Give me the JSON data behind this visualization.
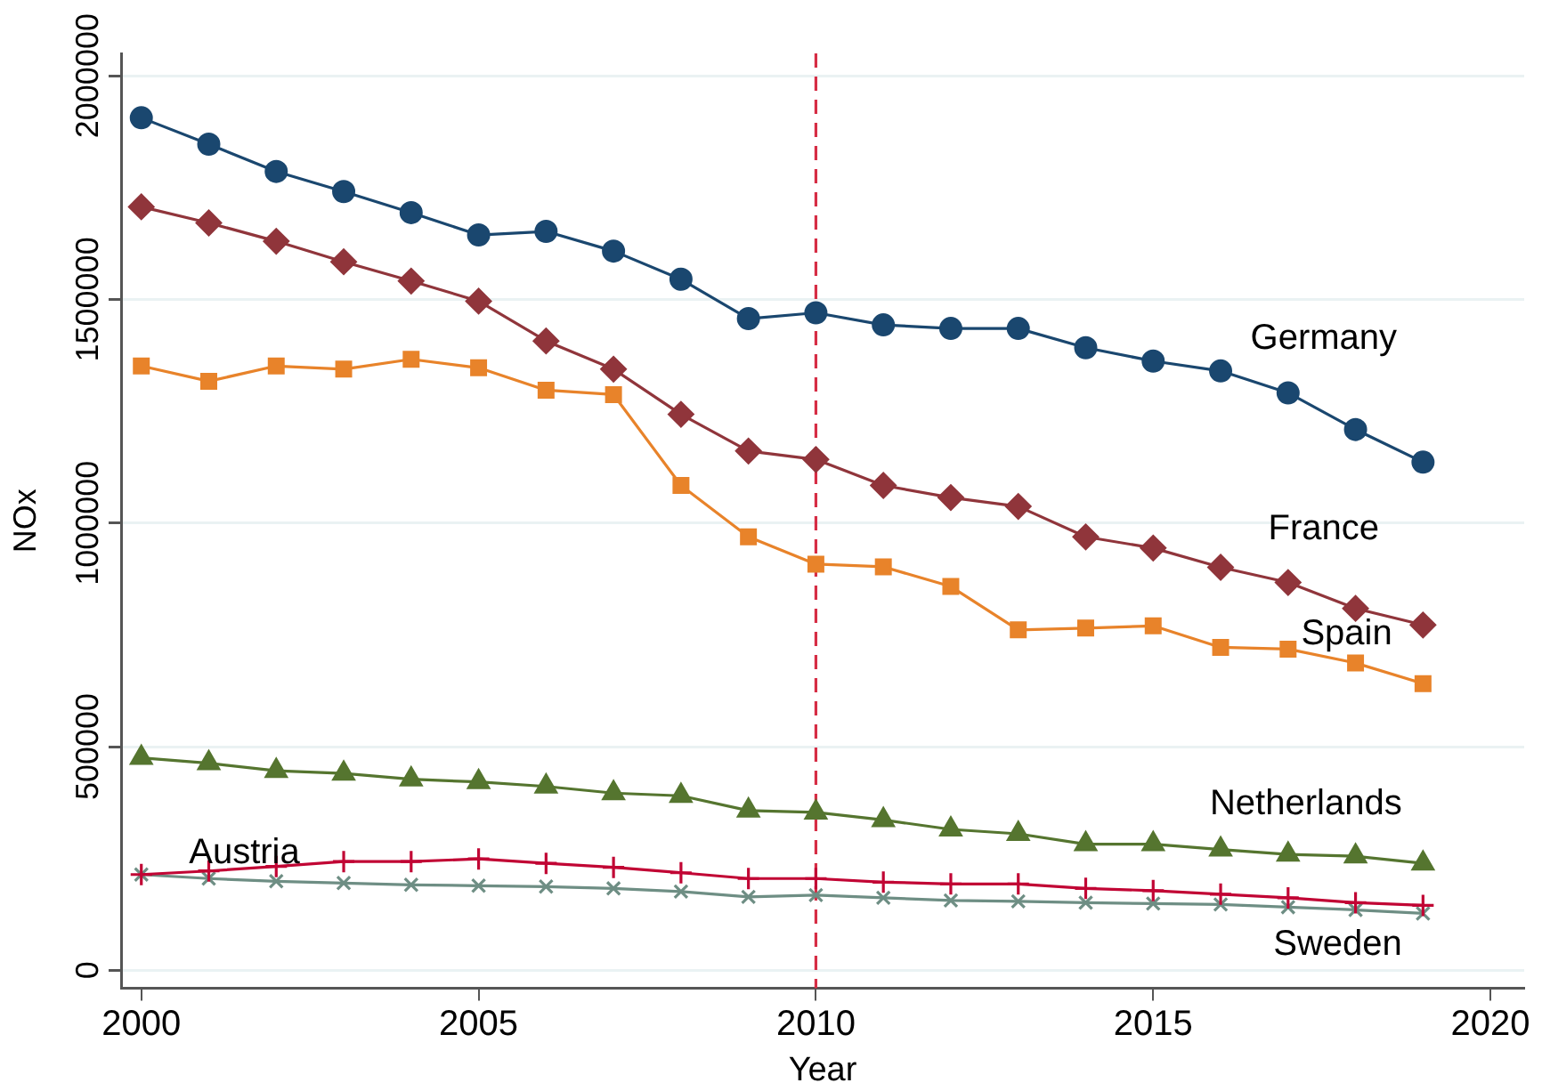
{
  "chart_data": {
    "type": "line",
    "xlabel": "Year",
    "ylabel": "NOx",
    "x": [
      2000,
      2001,
      2002,
      2003,
      2004,
      2005,
      2006,
      2007,
      2008,
      2009,
      2010,
      2011,
      2012,
      2013,
      2014,
      2015,
      2016,
      2017,
      2018,
      2019
    ],
    "series": [
      {
        "name": "Germany",
        "color": "#1a476f",
        "marker": "circle",
        "values": [
          1906000,
          1847000,
          1786000,
          1741000,
          1694000,
          1644000,
          1652000,
          1608000,
          1545000,
          1457000,
          1470000,
          1443000,
          1435000,
          1435000,
          1392000,
          1362000,
          1340000,
          1291000,
          1209000,
          1136000
        ]
      },
      {
        "name": "France",
        "color": "#90353b",
        "marker": "diamond",
        "values": [
          1707000,
          1671000,
          1630000,
          1584000,
          1541000,
          1496000,
          1407000,
          1344000,
          1243000,
          1161000,
          1142000,
          1084000,
          1057000,
          1037000,
          969000,
          944000,
          901000,
          867000,
          809000,
          772000
        ]
      },
      {
        "name": "Spain",
        "color": "#e8832a",
        "marker": "square",
        "values": [
          1351000,
          1317000,
          1351000,
          1344000,
          1366000,
          1347000,
          1297000,
          1287000,
          1084000,
          969000,
          908000,
          902000,
          858000,
          761000,
          765000,
          770000,
          722000,
          718000,
          687000,
          641000
        ]
      },
      {
        "name": "Netherlands",
        "color": "#55752f",
        "marker": "triangle",
        "values": [
          475000,
          463000,
          446000,
          440000,
          427000,
          421000,
          411000,
          396000,
          390000,
          357000,
          353000,
          336000,
          315000,
          305000,
          282000,
          282000,
          270000,
          259000,
          255000,
          239000
        ]
      },
      {
        "name": "Austria",
        "color": "#c10534",
        "marker": "cross",
        "values": [
          214000,
          222000,
          232000,
          243000,
          243000,
          249000,
          239000,
          230000,
          218000,
          205000,
          205000,
          197000,
          193000,
          193000,
          183000,
          178000,
          170000,
          162000,
          151000,
          145000
        ]
      },
      {
        "name": "Sweden",
        "color": "#6e8e84",
        "marker": "x",
        "values": [
          214000,
          205000,
          199000,
          195000,
          191000,
          189000,
          187000,
          183000,
          176000,
          164000,
          168000,
          162000,
          156000,
          154000,
          151000,
          149000,
          147000,
          141000,
          135000,
          127000
        ]
      }
    ],
    "xlim": [
      1999.7,
      2020.5
    ],
    "ylim": [
      -40000,
      2050000
    ],
    "xticks": [
      2000,
      2005,
      2010,
      2015,
      2020
    ],
    "yticks": [
      0,
      500000,
      1000000,
      1500000,
      2000000
    ],
    "grid": "y",
    "legend": false,
    "ref_lines": [
      {
        "axis": "x",
        "value": 2010,
        "color": "#d62d45",
        "line_style": "dashed"
      }
    ]
  }
}
